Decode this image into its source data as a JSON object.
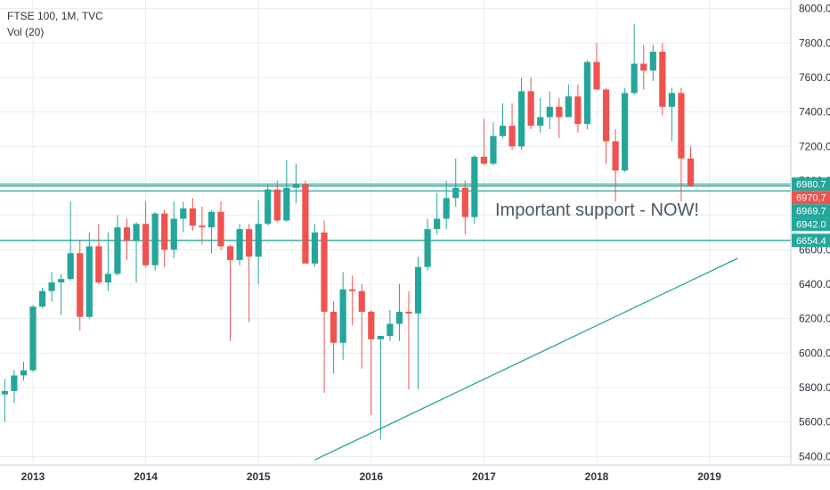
{
  "legend": {
    "title": "FTSE 100, 1M, TVC",
    "indicator": "Vol (20)"
  },
  "annotation": "Important support - NOW!",
  "colors": {
    "up": "#26a69a",
    "down": "#ef5350",
    "line": "#26a69a",
    "current": "#ef5350"
  },
  "chart_data": {
    "type": "candlestick",
    "title": "FTSE 100, 1M, TVC",
    "ylim": [
      5350,
      8050
    ],
    "y_ticks": [
      "5400.0",
      "5600.0",
      "5800.0",
      "6000.0",
      "6200.0",
      "6400.0",
      "6600.0",
      "6800.0",
      "7000.0",
      "7200.0",
      "7400.0",
      "7600.0",
      "7800.0",
      "8000.0"
    ],
    "x_ticks": [
      "2013",
      "2014",
      "2015",
      "2016",
      "2017",
      "2018",
      "2019"
    ],
    "grid": true,
    "price_labels": [
      {
        "value": 6980.7,
        "text": "6980.7",
        "color": "#26a69a"
      },
      {
        "value": 6970.7,
        "text": "6970.7",
        "color": "#ef5350"
      },
      {
        "value": 6969.7,
        "text": "6969.7",
        "color": "#26a69a"
      },
      {
        "value": 6942.0,
        "text": "6942.0",
        "color": "#26a69a"
      },
      {
        "value": 6654.4,
        "text": "6654.4",
        "color": "#26a69a"
      }
    ],
    "horizontal_lines": [
      6980.7,
      6969.7,
      6942.0,
      6654.4
    ],
    "trendline": {
      "from": [
        "2015-07",
        5380
      ],
      "to": [
        "2019-04",
        6550
      ]
    },
    "candles": [
      [
        "2012-10",
        5760,
        5850,
        5600,
        5780
      ],
      [
        "2012-11",
        5780,
        5900,
        5710,
        5870
      ],
      [
        "2012-12",
        5870,
        5950,
        5840,
        5900
      ],
      [
        "2013-01",
        5900,
        6280,
        5890,
        6270
      ],
      [
        "2013-02",
        6270,
        6380,
        6260,
        6360
      ],
      [
        "2013-03",
        6360,
        6470,
        6300,
        6410
      ],
      [
        "2013-04",
        6410,
        6460,
        6220,
        6430
      ],
      [
        "2013-05",
        6430,
        6880,
        6420,
        6580
      ],
      [
        "2013-06",
        6580,
        6660,
        6130,
        6210
      ],
      [
        "2013-07",
        6210,
        6700,
        6200,
        6620
      ],
      [
        "2013-08",
        6620,
        6750,
        6400,
        6410
      ],
      [
        "2013-09",
        6410,
        6700,
        6360,
        6460
      ],
      [
        "2013-10",
        6460,
        6800,
        6450,
        6730
      ],
      [
        "2013-11",
        6730,
        6780,
        6540,
        6650
      ],
      [
        "2013-12",
        6650,
        6760,
        6410,
        6750
      ],
      [
        "2014-01",
        6750,
        6880,
        6500,
        6510
      ],
      [
        "2014-02",
        6510,
        6820,
        6480,
        6810
      ],
      [
        "2014-03",
        6810,
        6830,
        6500,
        6600
      ],
      [
        "2014-04",
        6600,
        6880,
        6550,
        6780
      ],
      [
        "2014-05",
        6780,
        6880,
        6700,
        6840
      ],
      [
        "2014-06",
        6840,
        6900,
        6710,
        6740
      ],
      [
        "2014-07",
        6740,
        6850,
        6630,
        6730
      ],
      [
        "2014-08",
        6730,
        6830,
        6580,
        6820
      ],
      [
        "2014-09",
        6820,
        6880,
        6600,
        6620
      ],
      [
        "2014-10",
        6620,
        6630,
        6070,
        6540
      ],
      [
        "2014-11",
        6540,
        6750,
        6510,
        6720
      ],
      [
        "2014-12",
        6720,
        6750,
        6180,
        6560
      ],
      [
        "2015-01",
        6560,
        6890,
        6400,
        6750
      ],
      [
        "2015-02",
        6750,
        6980,
        6740,
        6950
      ],
      [
        "2015-03",
        6950,
        7000,
        6760,
        6770
      ],
      [
        "2015-04",
        6770,
        7120,
        6760,
        6960
      ],
      [
        "2015-05",
        6960,
        7100,
        6870,
        6980
      ],
      [
        "2015-06",
        6980,
        7000,
        6520,
        6520
      ],
      [
        "2015-07",
        6520,
        6750,
        6500,
        6700
      ],
      [
        "2015-08",
        6700,
        6770,
        5770,
        6240
      ],
      [
        "2015-09",
        6240,
        6300,
        5880,
        6060
      ],
      [
        "2015-10",
        6060,
        6470,
        5960,
        6370
      ],
      [
        "2015-11",
        6370,
        6450,
        6160,
        6360
      ],
      [
        "2015-12",
        6360,
        6400,
        5910,
        6240
      ],
      [
        "2016-01",
        6240,
        6250,
        5640,
        6080
      ],
      [
        "2016-02",
        6080,
        6100,
        5500,
        6100
      ],
      [
        "2016-03",
        6100,
        6250,
        6070,
        6170
      ],
      [
        "2016-04",
        6170,
        6400,
        6070,
        6240
      ],
      [
        "2016-05",
        6240,
        6360,
        5790,
        6230
      ],
      [
        "2016-06",
        6230,
        6560,
        5790,
        6500
      ],
      [
        "2016-07",
        6500,
        6780,
        6480,
        6720
      ],
      [
        "2016-08",
        6720,
        6930,
        6690,
        6780
      ],
      [
        "2016-09",
        6780,
        7000,
        6720,
        6900
      ],
      [
        "2016-10",
        6900,
        7130,
        6850,
        6960
      ],
      [
        "2016-11",
        6960,
        7000,
        6690,
        6790
      ],
      [
        "2016-12",
        6790,
        7150,
        6750,
        7140
      ],
      [
        "2017-01",
        7140,
        7360,
        7090,
        7100
      ],
      [
        "2017-02",
        7100,
        7340,
        7090,
        7260
      ],
      [
        "2017-03",
        7260,
        7450,
        7250,
        7320
      ],
      [
        "2017-04",
        7320,
        7450,
        7180,
        7200
      ],
      [
        "2017-05",
        7200,
        7600,
        7180,
        7520
      ],
      [
        "2017-06",
        7520,
        7600,
        7300,
        7320
      ],
      [
        "2017-07",
        7320,
        7480,
        7280,
        7370
      ],
      [
        "2017-08",
        7370,
        7520,
        7300,
        7430
      ],
      [
        "2017-09",
        7430,
        7480,
        7250,
        7370
      ],
      [
        "2017-10",
        7370,
        7560,
        7370,
        7490
      ],
      [
        "2017-11",
        7490,
        7560,
        7280,
        7330
      ],
      [
        "2017-12",
        7330,
        7700,
        7300,
        7690
      ],
      [
        "2018-01",
        7690,
        7800,
        7530,
        7530
      ],
      [
        "2018-02",
        7530,
        7540,
        7100,
        7230
      ],
      [
        "2018-03",
        7230,
        7300,
        6880,
        7060
      ],
      [
        "2018-04",
        7060,
        7540,
        7050,
        7510
      ],
      [
        "2018-05",
        7510,
        7910,
        7500,
        7680
      ],
      [
        "2018-06",
        7680,
        7790,
        7530,
        7640
      ],
      [
        "2018-07",
        7640,
        7790,
        7580,
        7750
      ],
      [
        "2018-08",
        7750,
        7800,
        7380,
        7430
      ],
      [
        "2018-09",
        7430,
        7540,
        7230,
        7510
      ],
      [
        "2018-10",
        7510,
        7540,
        6880,
        7130
      ],
      [
        "2018-11",
        7130,
        7200,
        6980,
        6970
      ]
    ]
  }
}
